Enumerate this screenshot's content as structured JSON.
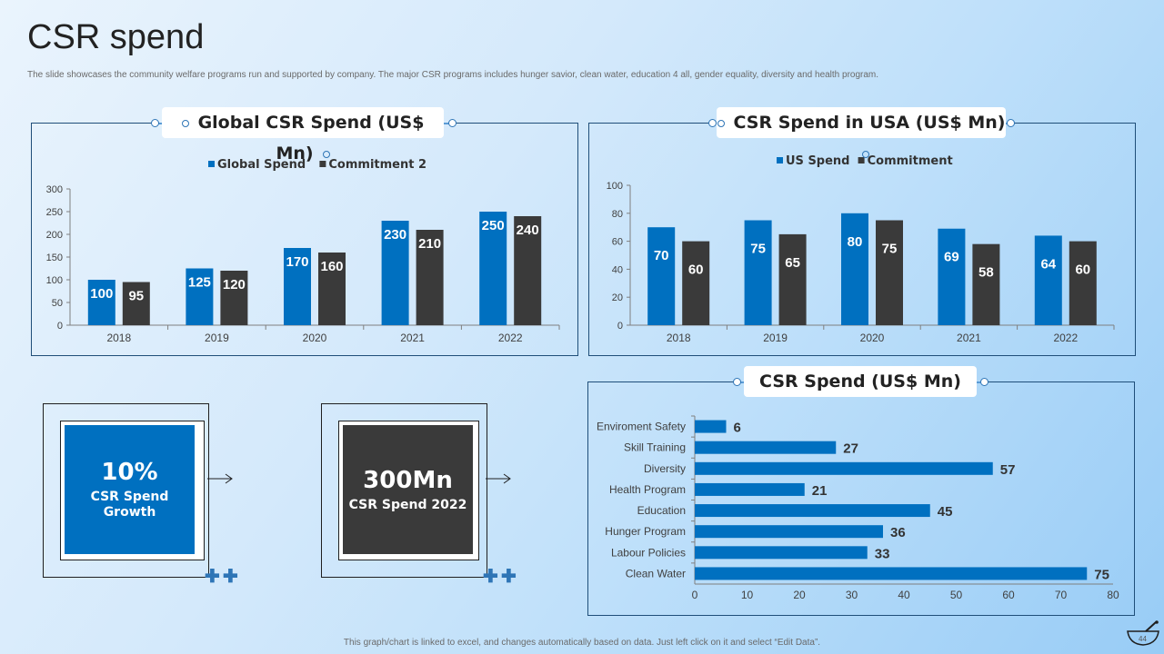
{
  "page": {
    "title": "CSR spend",
    "subtitle": "The slide showcases the community welfare programs run and supported by company. The major CSR  programs includes hunger savior, clean water, education 4 all, gender equality, diversity and health program.",
    "footer": "This graph/chart is linked to excel, and changes automatically based on data. Just left click on it and select “Edit Data”.",
    "page_number": "44"
  },
  "colors": {
    "blue": "#0070c0",
    "dark": "#3a3a3a",
    "axis": "#7f7f7f"
  },
  "chart_data": [
    {
      "id": "global",
      "type": "bar",
      "title": "Global CSR Spend (US$ Mn)",
      "categories": [
        "2018",
        "2019",
        "2020",
        "2021",
        "2022"
      ],
      "series": [
        {
          "name": "Global Spend",
          "values": [
            100,
            125,
            170,
            230,
            250
          ],
          "color": "#0070c0"
        },
        {
          "name": "Commitment 2",
          "values": [
            95,
            120,
            160,
            210,
            240
          ],
          "color": "#3a3a3a"
        }
      ],
      "ylim": [
        0,
        300
      ],
      "yticks": [
        0,
        50,
        100,
        150,
        200,
        250,
        300
      ],
      "legend": "top"
    },
    {
      "id": "usa",
      "type": "bar",
      "title": "CSR Spend in USA (US$ Mn)",
      "categories": [
        "2018",
        "2019",
        "2020",
        "2021",
        "2022"
      ],
      "series": [
        {
          "name": "US Spend",
          "values": [
            70,
            75,
            80,
            69,
            64
          ],
          "color": "#0070c0"
        },
        {
          "name": "Commitment",
          "values": [
            60,
            65,
            75,
            58,
            60
          ],
          "color": "#3a3a3a"
        }
      ],
      "ylim": [
        0,
        100
      ],
      "yticks": [
        0,
        20,
        40,
        60,
        80,
        100
      ],
      "legend": "top"
    },
    {
      "id": "programs",
      "type": "bar",
      "orientation": "horizontal",
      "title": "CSR Spend (US$ Mn)",
      "categories": [
        "Enviroment Safety",
        "Skill Training",
        "Diversity",
        "Health Program",
        "Education",
        "Hunger Program",
        "Labour Policies",
        "Clean Water"
      ],
      "values": [
        6,
        27,
        57,
        21,
        45,
        36,
        33,
        75
      ],
      "color": "#0070c0",
      "xlim": [
        0,
        80
      ],
      "xticks": [
        0,
        10,
        20,
        30,
        40,
        50,
        60,
        70,
        80
      ]
    }
  ],
  "cards": [
    {
      "value": "10%",
      "label": "CSR Spend Growth"
    },
    {
      "value": "300Mn",
      "label": "CSR Spend 2022"
    }
  ]
}
